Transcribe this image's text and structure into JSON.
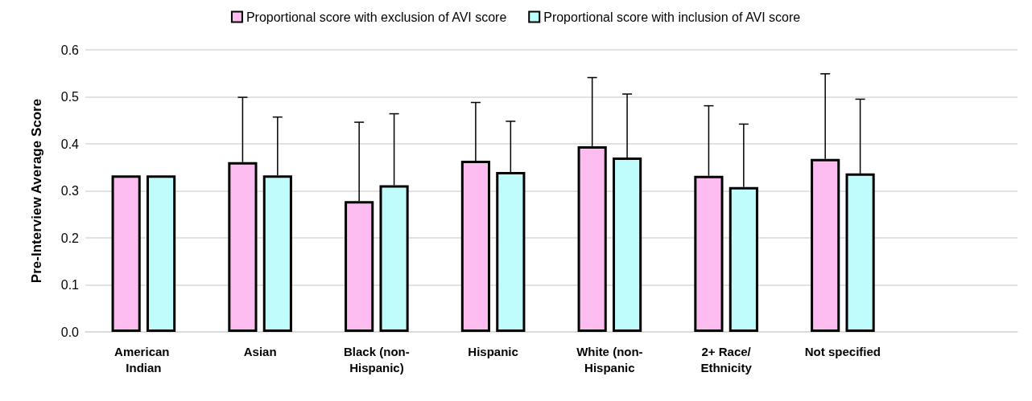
{
  "chart_data": {
    "type": "bar",
    "ylabel": "Pre-Interview Average Score",
    "categories": [
      "American Indian",
      "Asian",
      "Black (non-Hispanic)",
      "Hispanic",
      "White (non-Hispanic",
      "2+ Race/Ethnicity",
      "Not specified",
      null
    ],
    "series": [
      {
        "name": "Proportional score with exclusion of AVI score",
        "color": "#fcbcef",
        "values": [
          0.333,
          0.361,
          0.278,
          0.364,
          0.395,
          0.332,
          0.368,
          null
        ],
        "errors": [
          null,
          [
            0.361,
            0.499
          ],
          [
            0.278,
            0.446
          ],
          [
            0.364,
            0.488
          ],
          [
            0.395,
            0.541
          ],
          [
            0.332,
            0.481
          ],
          [
            0.368,
            0.549
          ],
          null
        ]
      },
      {
        "name": "Proportional score with inclusion of AVI score",
        "color": "#bffcfc",
        "values": [
          0.333,
          0.333,
          0.312,
          0.34,
          0.371,
          0.308,
          0.337,
          null
        ],
        "errors": [
          null,
          [
            0.333,
            0.457
          ],
          [
            0.312,
            0.464
          ],
          [
            0.34,
            0.448
          ],
          [
            0.371,
            0.506
          ],
          [
            0.308,
            0.442
          ],
          [
            0.337,
            0.495
          ],
          null
        ]
      }
    ],
    "ylim": [
      0,
      0.6
    ],
    "yticks": [
      {
        "value": 0,
        "label": "0.0"
      },
      0.1,
      0.2,
      0.3,
      0.4,
      0.5,
      0.6
    ],
    "grid": "y",
    "legend": "top"
  }
}
